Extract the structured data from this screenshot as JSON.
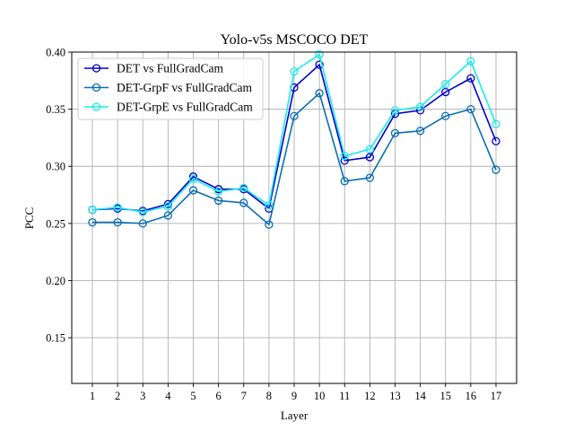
{
  "chart_data": {
    "type": "line",
    "title": "Yolo-v5s MSCOCO DET",
    "xlabel": "Layer",
    "ylabel": "PCC",
    "categories": [
      "1",
      "2",
      "3",
      "4",
      "5",
      "6",
      "7",
      "8",
      "9",
      "10",
      "11",
      "12",
      "13",
      "14",
      "15",
      "16",
      "17"
    ],
    "ylim": [
      0.11,
      0.4
    ],
    "yticks": [
      "0.15",
      "0.20",
      "0.25",
      "0.30",
      "0.35",
      "0.40"
    ],
    "grid": true,
    "legend_position": "upper-left",
    "series": [
      {
        "name": "DET vs FullGradCam",
        "color": "#0000cc",
        "values": [
          0.262,
          0.263,
          0.261,
          0.267,
          0.291,
          0.28,
          0.28,
          0.263,
          0.369,
          0.389,
          0.305,
          0.308,
          0.346,
          0.349,
          0.365,
          0.377,
          0.322
        ]
      },
      {
        "name": "DET-GrpF vs FullGradCam",
        "color": "#0a6eb4",
        "values": [
          0.251,
          0.251,
          0.25,
          0.257,
          0.279,
          0.27,
          0.268,
          0.249,
          0.344,
          0.364,
          0.287,
          0.29,
          0.329,
          0.331,
          0.344,
          0.35,
          0.297
        ]
      },
      {
        "name": "DET-GrpE vs FullGradCam",
        "color": "#1aeaea",
        "values": [
          0.262,
          0.264,
          0.26,
          0.265,
          0.289,
          0.278,
          0.281,
          0.266,
          0.383,
          0.398,
          0.309,
          0.315,
          0.349,
          0.352,
          0.372,
          0.392,
          0.337
        ]
      }
    ]
  }
}
